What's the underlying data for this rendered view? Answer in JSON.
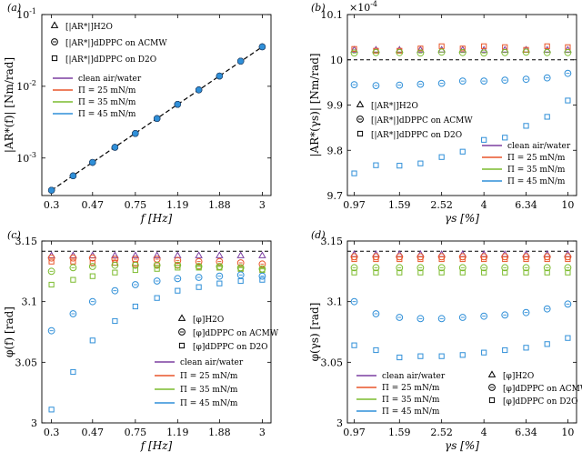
{
  "figure": {
    "colors": {
      "clean": "#7b3fa0",
      "pi25": "#e8552a",
      "pi35": "#7cbb2e",
      "pi45": "#2f8fd8",
      "fit_line": "#000000"
    }
  },
  "chart_data": [
    {
      "panel_label": "(a)",
      "type": "scatter",
      "xscale": "log",
      "yscale": "log",
      "xlabel": "f [Hz]",
      "ylabel": "|AR*(f)| [Nm/rad]",
      "xlim": [
        0.27,
        3.3
      ],
      "ylim": [
        0.0003,
        0.1
      ],
      "x_tick_values": [
        0.3,
        0.47,
        0.75,
        1.19,
        1.88,
        3
      ],
      "x_tick_labels": [
        "0.3",
        "0.47",
        "0.75",
        "1.19",
        "1.88",
        "3"
      ],
      "y_tick_values": [
        0.001,
        0.01,
        0.1
      ],
      "y_tick_labels": [
        "10-3",
        "10-2",
        "10-1"
      ],
      "grid": false,
      "legend_position": "top-left",
      "legend_markers": [
        "[|AR*|]H2O",
        "[|AR*|]dDPPC on ACMW",
        "[|AR*|]dDPPC on D2O"
      ],
      "legend_lines": [
        "clean air/water",
        "Π = 25 mN/m",
        "Π = 35 mN/m",
        "Π = 45 mN/m"
      ],
      "reference_line": {
        "style": "dashed",
        "from": [
          0.3,
          0.000355
        ],
        "to": [
          3,
          0.0355
        ]
      },
      "x": [
        0.3,
        0.38,
        0.47,
        0.6,
        0.75,
        0.95,
        1.19,
        1.5,
        1.88,
        2.37,
        3
      ],
      "series": [
        {
          "name": "clean air/water",
          "values": [
            0.000355,
            0.000565,
            0.00087,
            0.00141,
            0.0022,
            0.00355,
            0.0056,
            0.0089,
            0.0139,
            0.0224,
            0.0355
          ]
        },
        {
          "name": "Π = 25 mN/m",
          "values": [
            0.000355,
            0.000565,
            0.00087,
            0.00141,
            0.0022,
            0.00355,
            0.0056,
            0.0089,
            0.0139,
            0.0224,
            0.0355
          ]
        },
        {
          "name": "Π = 35 mN/m",
          "values": [
            0.000355,
            0.000565,
            0.00087,
            0.00141,
            0.0022,
            0.00355,
            0.0056,
            0.0089,
            0.0139,
            0.0224,
            0.0355
          ]
        },
        {
          "name": "Π = 45 mN/m",
          "values": [
            0.000355,
            0.000565,
            0.00087,
            0.00141,
            0.0022,
            0.00355,
            0.0056,
            0.0089,
            0.0139,
            0.0224,
            0.0355
          ]
        }
      ]
    },
    {
      "panel_label": "(b)",
      "type": "scatter",
      "xscale": "log",
      "yscale": "linear",
      "xlabel": "γs [%]",
      "ylabel": "|AR*(γs)| [Nm/rad]",
      "y_multiplier": "×10-4",
      "xlim": [
        0.9,
        11
      ],
      "ylim": [
        9.7,
        10.1
      ],
      "x_tick_values": [
        0.97,
        1.59,
        2.52,
        4,
        6.34,
        10
      ],
      "x_tick_labels": [
        "0.97",
        "1.59",
        "2.52",
        "4",
        "6.34",
        "10"
      ],
      "y_tick_values": [
        9.7,
        9.8,
        9.9,
        10,
        10.1
      ],
      "y_tick_labels": [
        "9.7",
        "9.8",
        "9.9",
        "10",
        "10.1"
      ],
      "grid": false,
      "legend_position": "center-left",
      "legend_markers": [
        "[|AR*|]H2O",
        "[|AR*|]dDPPC on ACMW",
        "[|AR*|]dDPPC on D2O"
      ],
      "legend_lines": [
        "clean air/water",
        "Π = 25 mN/m",
        "Π = 35 mN/m",
        "Π = 45 mN/m"
      ],
      "reference_line": {
        "style": "dashed",
        "y": 10
      },
      "x": [
        0.97,
        1.23,
        1.59,
        2.0,
        2.52,
        3.17,
        4,
        5.03,
        6.34,
        7.98,
        10
      ],
      "series": [
        {
          "name": "clean air/water",
          "marker": "triangle",
          "values": [
            10.022,
            10.022,
            10.022,
            10.022,
            10.022,
            10.022,
            10.022,
            10.022,
            10.022,
            10.022,
            10.022
          ]
        },
        {
          "name": "Π = 25 mN/m",
          "marker": "square",
          "values": [
            10.024,
            10.02,
            10.02,
            10.025,
            10.03,
            10.025,
            10.03,
            10.028,
            10.022,
            10.03,
            10.028
          ]
        },
        {
          "name": "Π = 35 mN/m",
          "marker": "circle",
          "values": [
            10.015,
            10.016,
            10.016,
            10.015,
            10.017,
            10.016,
            10.015,
            10.016,
            10.017,
            10.016,
            10.016
          ]
        },
        {
          "name": "Π = 45 mN/m",
          "marker": "circle",
          "values": [
            9.945,
            9.943,
            9.944,
            9.946,
            9.948,
            9.953,
            9.953,
            9.955,
            9.957,
            9.96,
            9.97
          ]
        },
        {
          "name": "Π = 45 mN/m",
          "marker": "square",
          "values": [
            9.749,
            9.767,
            9.766,
            9.771,
            9.785,
            9.797,
            9.823,
            9.828,
            9.854,
            9.874,
            9.91
          ]
        }
      ]
    },
    {
      "panel_label": "(c)",
      "type": "scatter",
      "xscale": "log",
      "yscale": "linear",
      "xlabel": "f [Hz]",
      "ylabel": "φ(f) [rad]",
      "xlim": [
        0.27,
        3.3
      ],
      "ylim": [
        3.0,
        3.15
      ],
      "x_tick_values": [
        0.3,
        0.47,
        0.75,
        1.19,
        1.88,
        3
      ],
      "x_tick_labels": [
        "0.3",
        "0.47",
        "0.75",
        "1.19",
        "1.88",
        "3"
      ],
      "y_tick_values": [
        3.0,
        3.05,
        3.1,
        3.15
      ],
      "y_tick_labels": [
        "3",
        "3.05",
        "3.1",
        "3.15"
      ],
      "grid": false,
      "legend_position": "bottom-right",
      "legend_markers": [
        "[φ]H2O",
        "[φ]dDPPC on ACMW",
        "[φ]dDPPC on D2O"
      ],
      "legend_lines": [
        "clean air/water",
        "Π = 25 mN/m",
        "Π = 35 mN/m",
        "Π = 45 mN/m"
      ],
      "reference_line": {
        "style": "dashed",
        "y": 3.1416
      },
      "x": [
        0.3,
        0.38,
        0.47,
        0.6,
        0.75,
        0.95,
        1.19,
        1.5,
        1.88,
        2.37,
        3
      ],
      "series": [
        {
          "name": "clean air/water",
          "marker": "triangle",
          "values": [
            3.138,
            3.138,
            3.138,
            3.138,
            3.138,
            3.138,
            3.138,
            3.138,
            3.138,
            3.138,
            3.138
          ]
        },
        {
          "name": "Π = 25 mN/m",
          "marker": "circle",
          "values": [
            3.136,
            3.136,
            3.136,
            3.135,
            3.135,
            3.135,
            3.134,
            3.133,
            3.133,
            3.132,
            3.131
          ]
        },
        {
          "name": "Π = 25 mN/m",
          "marker": "square",
          "values": [
            3.133,
            3.133,
            3.132,
            3.132,
            3.131,
            3.13,
            3.13,
            3.129,
            3.128,
            3.127,
            3.126
          ]
        },
        {
          "name": "Π = 35 mN/m",
          "marker": "circle",
          "values": [
            3.125,
            3.128,
            3.129,
            3.13,
            3.13,
            3.13,
            3.13,
            3.129,
            3.129,
            3.128,
            3.127
          ]
        },
        {
          "name": "Π = 35 mN/m",
          "marker": "square",
          "values": [
            3.114,
            3.118,
            3.121,
            3.124,
            3.126,
            3.127,
            3.128,
            3.128,
            3.128,
            3.127,
            3.126
          ]
        },
        {
          "name": "Π = 45 mN/m",
          "marker": "circle",
          "values": [
            3.076,
            3.09,
            3.1,
            3.109,
            3.114,
            3.117,
            3.119,
            3.12,
            3.121,
            3.122,
            3.121
          ]
        },
        {
          "name": "Π = 45 mN/m",
          "marker": "square",
          "values": [
            3.011,
            3.042,
            3.068,
            3.084,
            3.096,
            3.103,
            3.109,
            3.112,
            3.115,
            3.117,
            3.118
          ]
        }
      ]
    },
    {
      "panel_label": "(d)",
      "type": "scatter",
      "xscale": "log",
      "yscale": "linear",
      "xlabel": "γs [%]",
      "ylabel": "φ(γs) [rad]",
      "xlim": [
        0.9,
        11
      ],
      "ylim": [
        3.0,
        3.15
      ],
      "x_tick_values": [
        0.97,
        1.59,
        2.52,
        4,
        6.34,
        10
      ],
      "x_tick_labels": [
        "0.97",
        "1.59",
        "2.52",
        "4",
        "6.34",
        "10"
      ],
      "y_tick_values": [
        3.0,
        3.05,
        3.1,
        3.15
      ],
      "y_tick_labels": [
        "3",
        "3.05",
        "3.1",
        "3.15"
      ],
      "grid": false,
      "legend_position": "bottom",
      "legend_markers": [
        "[φ]H2O",
        "[φ]dDPPC on ACMW",
        "[φ]dDPPC on D2O"
      ],
      "legend_lines": [
        "clean air/water",
        "Π = 25 mN/m",
        "Π = 35 mN/m",
        "Π = 45 mN/m"
      ],
      "reference_line": {
        "style": "dashed",
        "y": 3.1416
      },
      "x": [
        0.97,
        1.23,
        1.59,
        2.0,
        2.52,
        3.17,
        4,
        5.03,
        6.34,
        7.98,
        10
      ],
      "series": [
        {
          "name": "clean air/water",
          "marker": "triangle",
          "values": [
            3.139,
            3.139,
            3.139,
            3.139,
            3.139,
            3.139,
            3.139,
            3.139,
            3.139,
            3.139,
            3.139
          ]
        },
        {
          "name": "Π = 25 mN/m",
          "marker": "circle",
          "values": [
            3.137,
            3.137,
            3.137,
            3.137,
            3.137,
            3.137,
            3.137,
            3.137,
            3.137,
            3.137,
            3.137
          ]
        },
        {
          "name": "Π = 25 mN/m",
          "marker": "square",
          "values": [
            3.135,
            3.135,
            3.135,
            3.135,
            3.135,
            3.135,
            3.135,
            3.135,
            3.135,
            3.135,
            3.135
          ]
        },
        {
          "name": "Π = 35 mN/m",
          "marker": "circle",
          "values": [
            3.128,
            3.128,
            3.128,
            3.128,
            3.128,
            3.128,
            3.128,
            3.128,
            3.128,
            3.128,
            3.128
          ]
        },
        {
          "name": "Π = 35 mN/m",
          "marker": "square",
          "values": [
            3.124,
            3.124,
            3.124,
            3.124,
            3.124,
            3.124,
            3.124,
            3.124,
            3.124,
            3.124,
            3.124
          ]
        },
        {
          "name": "Π = 45 mN/m",
          "marker": "circle",
          "values": [
            3.1,
            3.09,
            3.087,
            3.086,
            3.086,
            3.087,
            3.088,
            3.089,
            3.091,
            3.094,
            3.098
          ]
        },
        {
          "name": "Π = 45 mN/m",
          "marker": "square",
          "values": [
            3.064,
            3.06,
            3.054,
            3.055,
            3.055,
            3.056,
            3.058,
            3.06,
            3.062,
            3.065,
            3.07
          ]
        }
      ]
    }
  ]
}
